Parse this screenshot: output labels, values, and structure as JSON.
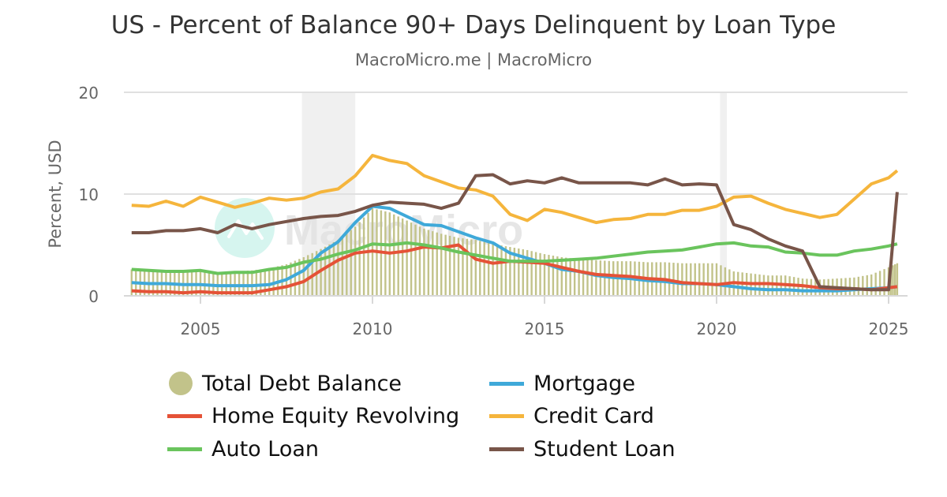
{
  "header": {
    "title": "US - Percent of Balance 90+ Days Delinquent by Loan Type",
    "subtitle": "MacroMicro.me | MacroMicro"
  },
  "watermark": {
    "text": "MacroMicro"
  },
  "chart_data": {
    "type": "line",
    "title": "US - Percent of Balance 90+ Days Delinquent by Loan Type",
    "subtitle": "MacroMicro.me | MacroMicro",
    "xlabel": "",
    "ylabel": "Percent, USD",
    "ylim": [
      0,
      20
    ],
    "yticks": [
      "0",
      "10",
      "20"
    ],
    "xticks": [
      "2005",
      "2010",
      "2015",
      "2020",
      "2025"
    ],
    "xlim": [
      2002.55,
      2025.35
    ],
    "grid": true,
    "legend_position": "bottom",
    "recession_bands": [
      [
        2007.95,
        2009.5
      ],
      [
        2020.1,
        2020.3
      ]
    ],
    "x": [
      2003.0,
      2003.5,
      2004.0,
      2004.5,
      2005.0,
      2005.5,
      2006.0,
      2006.5,
      2007.0,
      2007.5,
      2008.0,
      2008.5,
      2009.0,
      2009.5,
      2010.0,
      2010.5,
      2011.0,
      2011.5,
      2012.0,
      2012.5,
      2013.0,
      2013.5,
      2014.0,
      2014.5,
      2015.0,
      2015.5,
      2016.0,
      2016.5,
      2017.0,
      2017.5,
      2018.0,
      2018.5,
      2019.0,
      2019.5,
      2020.0,
      2020.5,
      2021.0,
      2021.5,
      2022.0,
      2022.5,
      2023.0,
      2023.5,
      2024.0,
      2024.5,
      2025.0,
      2025.25
    ],
    "series": [
      {
        "name": "Total Debt Balance",
        "type": "bar",
        "color": "#c2c38a",
        "values": [
          2.6,
          2.5,
          2.5,
          2.5,
          2.4,
          2.3,
          2.4,
          2.5,
          2.7,
          3.1,
          3.8,
          4.6,
          5.5,
          6.8,
          8.6,
          8.2,
          7.4,
          6.6,
          6.1,
          5.7,
          5.5,
          5.1,
          4.8,
          4.5,
          4.1,
          3.8,
          3.6,
          3.5,
          3.4,
          3.4,
          3.3,
          3.3,
          3.2,
          3.2,
          3.2,
          2.4,
          2.2,
          2.0,
          2.0,
          1.7,
          1.6,
          1.7,
          1.8,
          2.1,
          2.8,
          3.2
        ]
      },
      {
        "name": "Mortgage",
        "type": "line",
        "color": "#3fa9d9",
        "values": [
          1.3,
          1.2,
          1.2,
          1.1,
          1.1,
          1.0,
          1.0,
          1.0,
          1.1,
          1.6,
          2.5,
          4.2,
          5.3,
          7.2,
          8.8,
          8.6,
          7.8,
          7.0,
          6.9,
          6.3,
          5.7,
          5.2,
          4.2,
          3.7,
          3.2,
          2.6,
          2.4,
          2.0,
          1.8,
          1.7,
          1.5,
          1.4,
          1.2,
          1.2,
          1.1,
          0.9,
          0.7,
          0.6,
          0.6,
          0.5,
          0.5,
          0.5,
          0.6,
          0.7,
          0.8,
          0.9
        ]
      },
      {
        "name": "Home Equity Revolving",
        "type": "line",
        "color": "#e55237",
        "values": [
          0.5,
          0.4,
          0.4,
          0.3,
          0.4,
          0.3,
          0.3,
          0.3,
          0.6,
          0.9,
          1.4,
          2.5,
          3.5,
          4.2,
          4.4,
          4.2,
          4.4,
          4.8,
          4.7,
          5.0,
          3.6,
          3.2,
          3.4,
          3.3,
          3.2,
          2.8,
          2.4,
          2.1,
          2.0,
          1.9,
          1.7,
          1.6,
          1.3,
          1.2,
          1.1,
          1.3,
          1.2,
          1.2,
          1.1,
          1.0,
          0.8,
          0.7,
          0.7,
          0.6,
          0.8,
          0.9
        ]
      },
      {
        "name": "Auto Loan",
        "type": "line",
        "color": "#6ac45d",
        "values": [
          2.6,
          2.5,
          2.4,
          2.4,
          2.5,
          2.2,
          2.3,
          2.3,
          2.6,
          2.8,
          3.3,
          3.6,
          4.1,
          4.5,
          5.1,
          5.0,
          5.2,
          5.0,
          4.7,
          4.3,
          4.0,
          3.7,
          3.4,
          3.4,
          3.4,
          3.5,
          3.6,
          3.7,
          3.9,
          4.1,
          4.3,
          4.4,
          4.5,
          4.8,
          5.1,
          5.2,
          4.9,
          4.8,
          4.3,
          4.2,
          4.0,
          4.0,
          4.4,
          4.6,
          4.9,
          5.1
        ]
      },
      {
        "name": "Credit Card",
        "type": "line",
        "color": "#f5b53c",
        "values": [
          8.9,
          8.8,
          9.3,
          8.8,
          9.7,
          9.2,
          8.7,
          9.1,
          9.6,
          9.4,
          9.6,
          10.2,
          10.5,
          11.8,
          13.8,
          13.3,
          13.0,
          11.8,
          11.2,
          10.6,
          10.4,
          9.8,
          8.0,
          7.4,
          8.5,
          8.2,
          7.7,
          7.2,
          7.5,
          7.6,
          8.0,
          8.0,
          8.4,
          8.4,
          8.8,
          9.7,
          9.8,
          9.1,
          8.5,
          8.1,
          7.7,
          8.0,
          9.5,
          11.0,
          11.6,
          12.3
        ]
      },
      {
        "name": "Student Loan",
        "type": "line",
        "color": "#785549",
        "values": [
          6.2,
          6.2,
          6.4,
          6.4,
          6.6,
          6.2,
          7.0,
          6.6,
          7.0,
          7.3,
          7.6,
          7.8,
          7.9,
          8.3,
          8.9,
          9.2,
          9.1,
          9.0,
          8.6,
          9.1,
          11.8,
          11.9,
          11.0,
          11.3,
          11.1,
          11.6,
          11.1,
          11.1,
          11.1,
          11.1,
          10.9,
          11.5,
          10.9,
          11.0,
          10.9,
          7.0,
          6.5,
          5.6,
          4.9,
          4.4,
          0.9,
          0.8,
          0.7,
          0.6,
          0.6,
          10.2
        ]
      }
    ]
  },
  "axes": {
    "y_label": "Percent, USD",
    "y_ticks": [
      "0",
      "10",
      "20"
    ],
    "x_ticks": [
      "2005",
      "2010",
      "2015",
      "2020",
      "2025"
    ]
  },
  "legend": {
    "items": [
      {
        "label": "Total Debt Balance",
        "color": "#c2c38a",
        "shape": "dot"
      },
      {
        "label": "Mortgage",
        "color": "#3fa9d9",
        "shape": "line"
      },
      {
        "label": "Home Equity Revolving",
        "color": "#e55237",
        "shape": "line"
      },
      {
        "label": "Credit Card",
        "color": "#f5b53c",
        "shape": "line"
      },
      {
        "label": "Auto Loan",
        "color": "#6ac45d",
        "shape": "line"
      },
      {
        "label": "Student Loan",
        "color": "#785549",
        "shape": "line"
      }
    ]
  }
}
